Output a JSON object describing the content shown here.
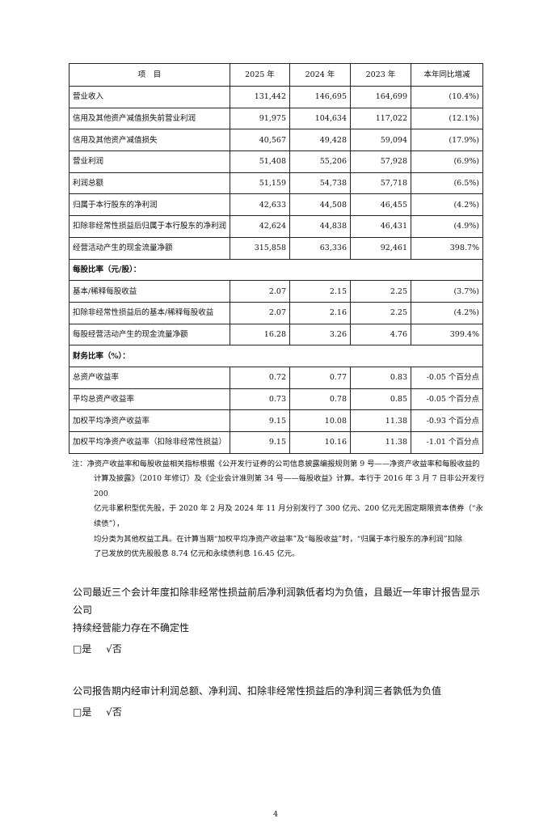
{
  "table": {
    "headers": [
      "项　目",
      "2025 年",
      "2024 年",
      "2023 年",
      "本年同比增减"
    ],
    "rows": [
      {
        "type": "row",
        "cells": [
          "营业收入",
          "131,442",
          "146,695",
          "164,699",
          "(10.4%)"
        ]
      },
      {
        "type": "row",
        "cells": [
          "信用及其他资产减值损失前营业利润",
          "91,975",
          "104,634",
          "117,022",
          "(12.1%)"
        ]
      },
      {
        "type": "row",
        "cells": [
          "信用及其他资产减值损失",
          "40,567",
          "49,428",
          "59,094",
          "(17.9%)"
        ]
      },
      {
        "type": "row",
        "cells": [
          "营业利润",
          "51,408",
          "55,206",
          "57,928",
          "(6.9%)"
        ]
      },
      {
        "type": "row",
        "cells": [
          "利润总额",
          "51,159",
          "54,738",
          "57,718",
          "(6.5%)"
        ]
      },
      {
        "type": "row",
        "cells": [
          "归属于本行股东的净利润",
          "42,633",
          "44,508",
          "46,455",
          "(4.2%)"
        ]
      },
      {
        "type": "row",
        "cells": [
          "扣除非经常性损益后归属于本行股东的净利润",
          "42,624",
          "44,838",
          "46,431",
          "(4.9%)"
        ]
      },
      {
        "type": "row",
        "cells": [
          "经营活动产生的现金流量净额",
          "315,858",
          "63,336",
          "92,461",
          "398.7%"
        ]
      },
      {
        "type": "section",
        "cells": [
          "每股比率（元/股）："
        ]
      },
      {
        "type": "row",
        "cells": [
          "基本/稀释每股收益",
          "2.07",
          "2.15",
          "2.25",
          "(3.7%)"
        ]
      },
      {
        "type": "row",
        "cells": [
          "扣除非经常性损益后的基本/稀释每股收益",
          "2.07",
          "2.16",
          "2.25",
          "(4.2%)"
        ]
      },
      {
        "type": "row",
        "cells": [
          "每股经营活动产生的现金流量净额",
          "16.28",
          "3.26",
          "4.76",
          "399.4%"
        ]
      },
      {
        "type": "section",
        "cells": [
          "财务比率（%）："
        ]
      },
      {
        "type": "row",
        "cells": [
          "总资产收益率",
          "0.72",
          "0.77",
          "0.83",
          "-0.05 个百分点"
        ]
      },
      {
        "type": "row",
        "cells": [
          "平均总资产收益率",
          "0.73",
          "0.78",
          "0.85",
          "-0.05 个百分点"
        ]
      },
      {
        "type": "row",
        "cells": [
          "加权平均净资产收益率",
          "9.15",
          "10.08",
          "11.38",
          "-0.93 个百分点"
        ]
      },
      {
        "type": "row",
        "cells": [
          "加权平均净资产收益率（扣除非经常性损益）",
          "9.15",
          "10.16",
          "11.38",
          "-1.01 个百分点"
        ]
      }
    ]
  },
  "note": {
    "first": "注：净资产收益率和每股收益相关指标根据《公开发行证券的公司信息披露编报规则第 9 号——净资产收益率和每股收益的",
    "lines": [
      "计算及披露》（2010 年修订）及《企业会计准则第 34 号——每股收益》计算。本行于 2016 年 3 月 7 日非公开发行 200",
      "亿元非累积型优先股，于 2020 年 2 月及 2024 年 11 月分别发行了 300 亿元、200 亿元无固定期限资本债券（“永续债”），",
      "均分类为其他权益工具。在计算当期“加权平均净资产收益率”及“每股收益”时，“归属于本行股东的净利润”扣除",
      "了已发放的优先股股息 8.74 亿元和永续债利息 16.45 亿元。"
    ]
  },
  "q1": {
    "line1": "公司最近三个会计年度扣除非经常性损益前后净利润孰低者均为负值，且最近一年审计报告显示公司",
    "line2": "持续经营能力存在不确定性",
    "yes": "□是",
    "no": "√否"
  },
  "q2": {
    "line1": "公司报告期内经审计利润总额、净利润、扣除非经常性损益后的净利润三者孰低为负值",
    "yes": "□是",
    "no": "√否"
  },
  "page_number": "4"
}
